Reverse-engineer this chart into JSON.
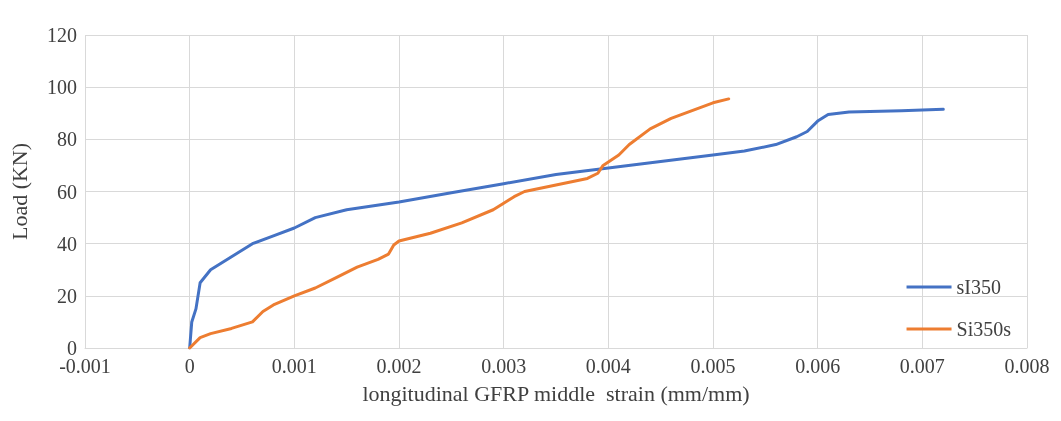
{
  "chart_data": {
    "type": "line",
    "xlabel": "longitudinal GFRP middle  strain (mm/mm)",
    "ylabel": "Load (KN)",
    "xlim": [
      -0.001,
      0.008
    ],
    "xticks": [
      -0.001,
      0,
      0.001,
      0.002,
      0.003,
      0.004,
      0.005,
      0.006,
      0.007,
      0.008
    ],
    "ylim": [
      0,
      120
    ],
    "yticks": [
      0,
      20,
      40,
      60,
      80,
      100,
      120
    ],
    "grid": true,
    "legend": "bottom right",
    "marker": "none",
    "line_style": "solid",
    "series": [
      {
        "name": "sI350",
        "color": "#4472c4",
        "x": [
          0,
          2e-05,
          6e-05,
          0.0001,
          0.0002,
          0.0004,
          0.0006,
          0.0008,
          0.001,
          0.0012,
          0.0015,
          0.002,
          0.0025,
          0.003,
          0.0035,
          0.004,
          0.0045,
          0.005,
          0.0053,
          0.0056,
          0.0058,
          0.0059,
          0.006,
          0.0061,
          0.0063,
          0.0068,
          0.0072
        ],
        "values": [
          0,
          10,
          15,
          25,
          30,
          35,
          40,
          43,
          46,
          50,
          53,
          56,
          59.5,
          63,
          66.5,
          69,
          71.5,
          74,
          75.5,
          78,
          81,
          83,
          87,
          89.5,
          90.5,
          91,
          91.5
        ]
      },
      {
        "name": "Si350s",
        "color": "#ed7d31",
        "x": [
          0,
          0.0001,
          0.0002,
          0.0004,
          0.0006,
          0.0007,
          0.0008,
          0.001,
          0.0012,
          0.0014,
          0.0016,
          0.0018,
          0.0019,
          0.00195,
          0.002,
          0.0023,
          0.0026,
          0.0029,
          0.003,
          0.0031,
          0.0032,
          0.0035,
          0.0038,
          0.0039,
          0.00395,
          0.0041,
          0.0042,
          0.0044,
          0.0046,
          0.0048,
          0.005,
          0.00515
        ],
        "values": [
          0,
          4,
          5.5,
          7.5,
          10,
          14,
          16.5,
          20,
          23,
          27,
          31,
          34,
          36,
          39.5,
          41,
          44,
          48,
          53,
          55.5,
          58,
          60,
          62.5,
          65,
          67,
          70,
          74,
          78,
          84,
          88,
          91,
          94,
          95.5
        ]
      }
    ]
  }
}
